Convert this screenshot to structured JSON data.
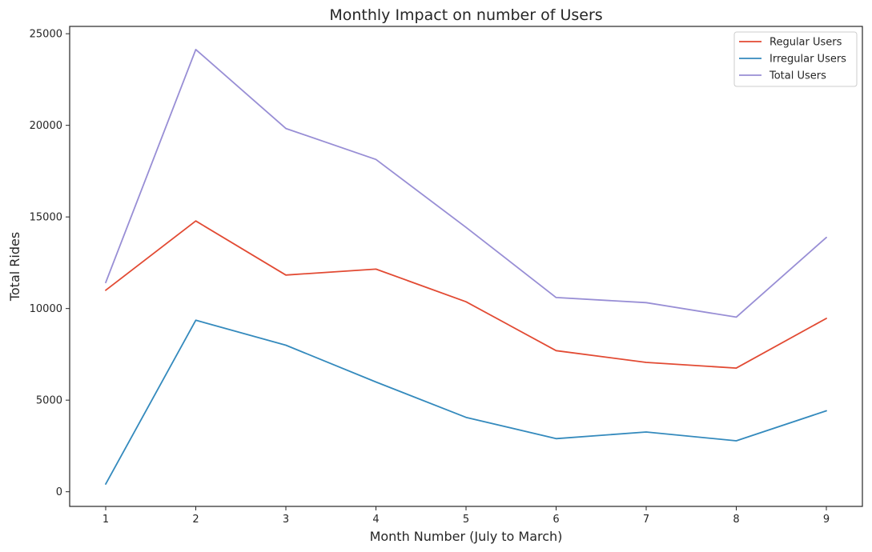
{
  "chart_data": {
    "type": "line",
    "title": "Monthly Impact on number of Users",
    "xlabel": "Month Number (July to March)",
    "ylabel": "Total Rides",
    "x": [
      1,
      2,
      3,
      4,
      5,
      6,
      7,
      8,
      9
    ],
    "xticks": [
      "1",
      "2",
      "3",
      "4",
      "5",
      "6",
      "7",
      "8",
      "9"
    ],
    "yticks": [
      "0",
      "5000",
      "10000",
      "15000",
      "20000",
      "25000"
    ],
    "ytick_values": [
      0,
      5000,
      10000,
      15000,
      20000,
      25000
    ],
    "xlim": [
      0.6,
      9.4
    ],
    "ylim": [
      -800,
      25400
    ],
    "grid": false,
    "legend_position": "top-right",
    "series": [
      {
        "name": "Regular Users",
        "color": "#e24a33",
        "values": [
          11000,
          14780,
          11830,
          12150,
          10370,
          7700,
          7060,
          6750,
          9460
        ]
      },
      {
        "name": "Irregular Users",
        "color": "#348abd",
        "values": [
          420,
          9360,
          8000,
          5990,
          4060,
          2900,
          3260,
          2780,
          4420
        ]
      },
      {
        "name": "Total Users",
        "color": "#988ed5",
        "values": [
          11420,
          24140,
          19830,
          18140,
          14430,
          10600,
          10320,
          9530,
          13880
        ]
      }
    ]
  }
}
